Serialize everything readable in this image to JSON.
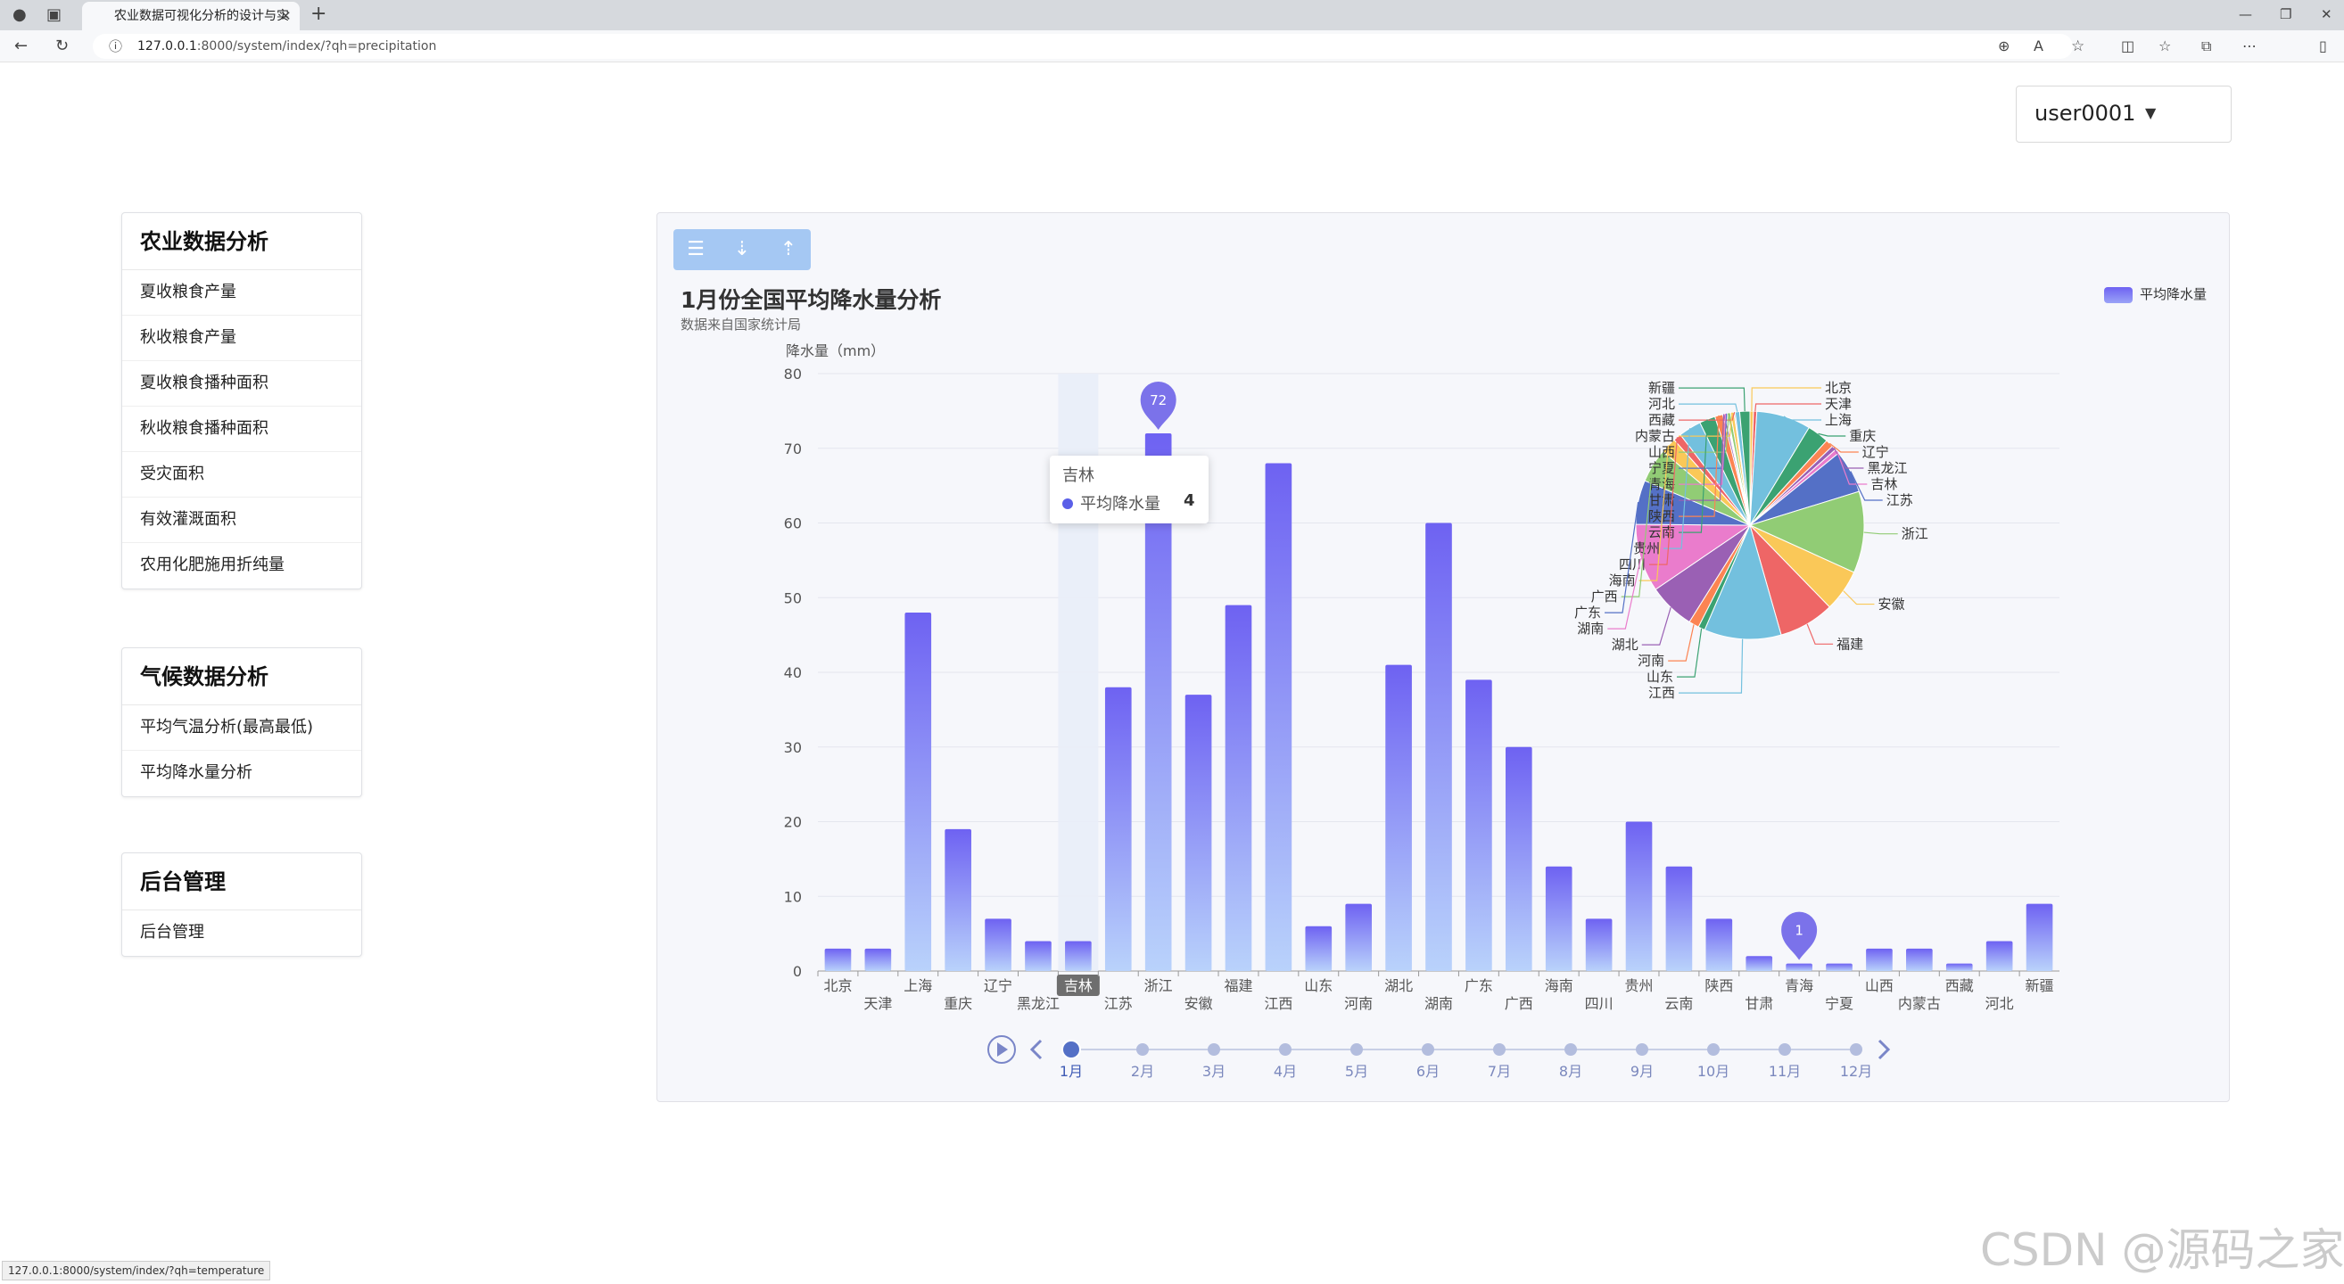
{
  "browser": {
    "tab_title": "农业数据可视化分析的设计与实",
    "url_host": "127.0.0.1",
    "url_path": ":8000/system/index/?qh=precipitation",
    "status_url": "127.0.0.1:8000/system/index/?qh=temperature"
  },
  "user": {
    "name": "user0001"
  },
  "sidebar": {
    "agri": {
      "title": "农业数据分析",
      "items": [
        "夏收粮食产量",
        "秋收粮食产量",
        "夏收粮食播种面积",
        "秋收粮食播种面积",
        "受灾面积",
        "有效灌溉面积",
        "农用化肥施用折纯量"
      ]
    },
    "climate": {
      "title": "气候数据分析",
      "items": [
        "平均气温分析(最高最低)",
        "平均降水量分析"
      ]
    },
    "admin": {
      "title": "后台管理",
      "items": [
        "后台管理"
      ]
    }
  },
  "chart": {
    "title": "1月份全国平均降水量分析",
    "subtitle": "数据来自国家统计局",
    "legend": "平均降水量",
    "tooltip": {
      "title": "吉林",
      "series": "平均降水量",
      "value": "4"
    },
    "colors": {
      "bar_top": "#6e62f2",
      "bar_bottom": "#b9d2fb",
      "highlight": "#7b72ea"
    }
  },
  "chart_data": [
    {
      "type": "bar",
      "ylabel": "降水量（mm）",
      "ylim": [
        0,
        80
      ],
      "yticks": [
        0,
        10,
        20,
        30,
        40,
        50,
        60,
        70,
        80
      ],
      "categories": [
        "北京",
        "天津",
        "上海",
        "重庆",
        "辽宁",
        "黑龙江",
        "吉林",
        "江苏",
        "浙江",
        "安徽",
        "福建",
        "江西",
        "山东",
        "河南",
        "湖北",
        "湖南",
        "广东",
        "广西",
        "海南",
        "四川",
        "贵州",
        "云南",
        "陕西",
        "甘肃",
        "青海",
        "宁夏",
        "山西",
        "内蒙古",
        "西藏",
        "河北",
        "新疆"
      ],
      "series": [
        {
          "name": "平均降水量",
          "values": [
            3,
            3,
            48,
            19,
            7,
            4,
            4,
            38,
            72,
            37,
            49,
            68,
            6,
            9,
            41,
            60,
            39,
            30,
            14,
            7,
            20,
            14,
            7,
            2,
            1,
            1,
            3,
            3,
            1,
            4,
            9
          ]
        }
      ],
      "markers": [
        {
          "category": "浙江",
          "label": "72"
        },
        {
          "category": "青海",
          "label": "1"
        }
      ],
      "highlighted_category": "吉林"
    },
    {
      "type": "pie",
      "labels": [
        "北京",
        "天津",
        "上海",
        "重庆",
        "辽宁",
        "黑龙江",
        "吉林",
        "江苏",
        "浙江",
        "安徽",
        "福建",
        "江西",
        "山东",
        "河南",
        "湖北",
        "湖南",
        "广东",
        "广西",
        "海南",
        "四川",
        "贵州",
        "云南",
        "陕西",
        "甘肃",
        "青海",
        "宁夏",
        "山西",
        "内蒙古",
        "西藏",
        "河北",
        "新疆"
      ],
      "values": [
        3,
        3,
        48,
        19,
        7,
        4,
        4,
        38,
        72,
        37,
        49,
        68,
        6,
        9,
        41,
        60,
        39,
        30,
        14,
        7,
        20,
        14,
        7,
        2,
        1,
        1,
        3,
        3,
        1,
        4,
        9
      ]
    }
  ],
  "timeline": {
    "months": [
      "1月",
      "2月",
      "3月",
      "4月",
      "5月",
      "6月",
      "7月",
      "8月",
      "9月",
      "10月",
      "11月",
      "12月"
    ],
    "current_index": 0
  },
  "watermark": "CSDN @源码之家"
}
